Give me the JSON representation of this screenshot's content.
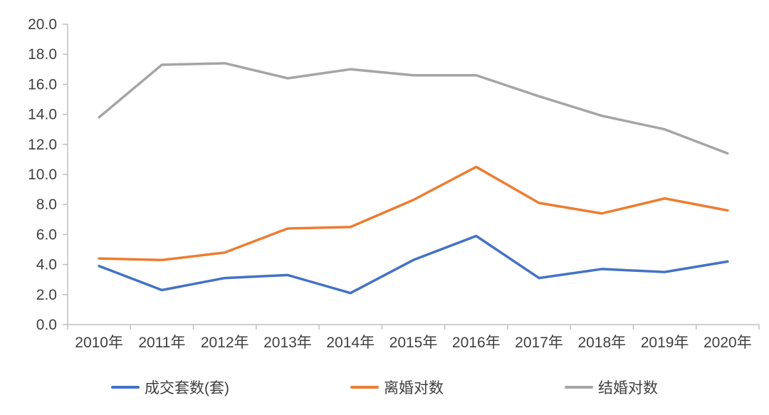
{
  "chart_data": {
    "type": "line",
    "title": "",
    "xlabel": "",
    "ylabel": "",
    "categories": [
      "2010年",
      "2011年",
      "2012年",
      "2013年",
      "2014年",
      "2015年",
      "2016年",
      "2017年",
      "2018年",
      "2019年",
      "2020年"
    ],
    "series": [
      {
        "name": "成交套数(套)",
        "color": "#4472C4",
        "values": [
          3.9,
          2.3,
          3.1,
          3.3,
          2.1,
          4.3,
          5.9,
          3.1,
          3.7,
          3.5,
          4.2
        ]
      },
      {
        "name": "离婚对数",
        "color": "#ED7D31",
        "values": [
          4.4,
          4.3,
          4.8,
          6.4,
          6.5,
          8.3,
          10.5,
          8.1,
          7.4,
          8.4,
          7.6
        ]
      },
      {
        "name": "结婚对数",
        "color": "#A5A5A5",
        "values": [
          13.8,
          17.3,
          17.4,
          16.4,
          17.0,
          16.6,
          16.6,
          15.2,
          13.9,
          13.0,
          11.4
        ]
      }
    ],
    "ylim": [
      0,
      20
    ],
    "ytick_step": 2,
    "ytick_labels": [
      "0.0",
      "2.0",
      "4.0",
      "6.0",
      "8.0",
      "10.0",
      "12.0",
      "14.0",
      "16.0",
      "18.0",
      "20.0"
    ],
    "grid": false,
    "legend_position": "bottom"
  },
  "style": {
    "axis_line_color": "#BFBFBF",
    "tick_label_color": "#404040",
    "background_color": "#FFFFFF",
    "line_width": 3.5
  }
}
